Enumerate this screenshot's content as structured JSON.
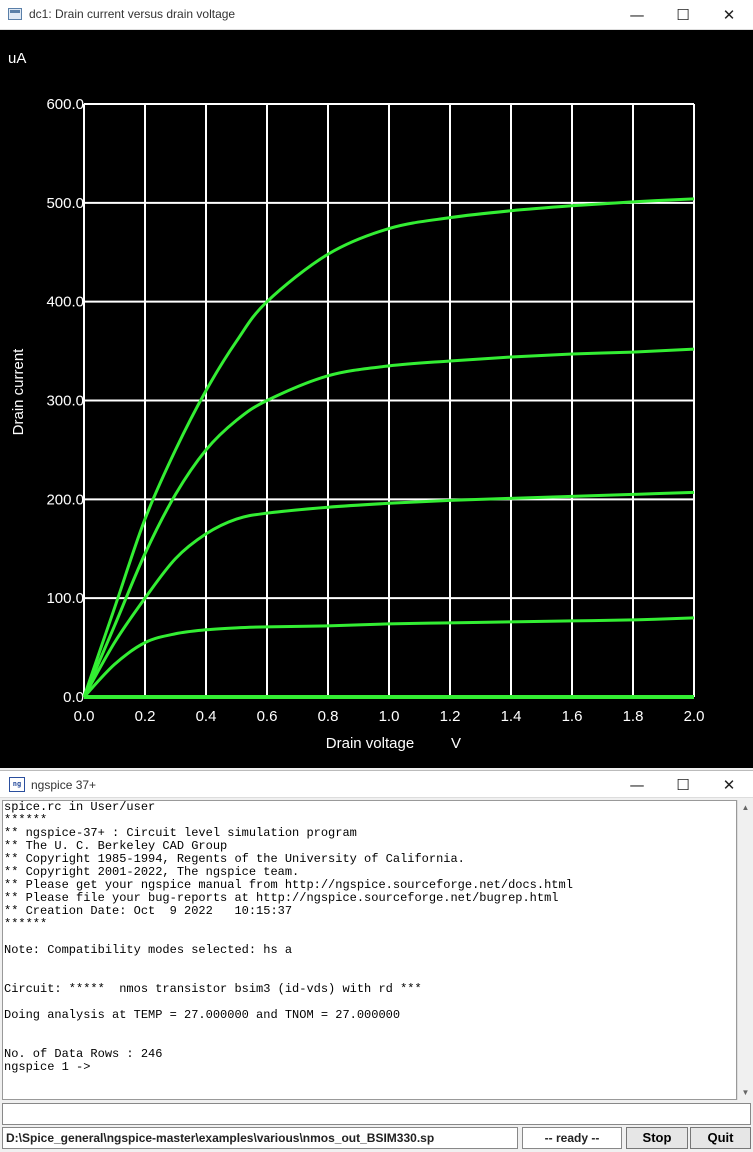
{
  "plot_window": {
    "title": "dc1: Drain current versus drain voltage",
    "controls": {
      "minimize": "—",
      "maximize": "☐",
      "close": "✕"
    }
  },
  "chart_data": {
    "type": "line",
    "xlabel": "Drain voltage",
    "xunit": "V",
    "ylabel": "Drain current",
    "yunit": "uA",
    "xlim": [
      0,
      2
    ],
    "ylim": [
      0,
      600
    ],
    "xticks": [
      "0.0",
      "0.2",
      "0.4",
      "0.6",
      "0.8",
      "1.0",
      "1.2",
      "1.4",
      "1.6",
      "1.8",
      "2.0"
    ],
    "yticks": [
      "0.0",
      "100.0",
      "200.0",
      "300.0",
      "400.0",
      "500.0",
      "600.0"
    ],
    "grid": true,
    "background": "#000000",
    "grid_color": "#ffffff",
    "line_color": "#33ee33",
    "series": [
      {
        "x": [
          0,
          0.1,
          0.2,
          0.3,
          0.4,
          0.5,
          0.6,
          0.8,
          1.0,
          1.2,
          1.4,
          1.6,
          1.8,
          2.0
        ],
        "values": [
          0,
          0,
          0,
          0,
          0,
          0,
          0,
          0,
          0,
          0,
          0,
          0,
          0,
          0
        ]
      },
      {
        "x": [
          0,
          0.1,
          0.2,
          0.3,
          0.4,
          0.5,
          0.6,
          0.8,
          1.0,
          1.2,
          1.4,
          1.6,
          1.8,
          2.0
        ],
        "values": [
          0,
          33,
          55,
          64,
          68,
          70,
          71,
          72,
          74,
          75,
          76,
          77,
          78,
          80
        ]
      },
      {
        "x": [
          0,
          0.1,
          0.2,
          0.3,
          0.4,
          0.5,
          0.6,
          0.8,
          1.0,
          1.2,
          1.4,
          1.6,
          1.8,
          2.0
        ],
        "values": [
          0,
          55,
          100,
          140,
          165,
          180,
          186,
          192,
          196,
          199,
          201,
          203,
          205,
          207
        ]
      },
      {
        "x": [
          0,
          0.1,
          0.2,
          0.3,
          0.4,
          0.5,
          0.6,
          0.8,
          1.0,
          1.2,
          1.4,
          1.6,
          1.8,
          2.0
        ],
        "values": [
          0,
          72,
          145,
          205,
          250,
          280,
          300,
          325,
          335,
          340,
          344,
          347,
          349,
          352
        ]
      },
      {
        "x": [
          0,
          0.1,
          0.2,
          0.3,
          0.4,
          0.5,
          0.6,
          0.8,
          1.0,
          1.2,
          1.4,
          1.6,
          1.8,
          2.0
        ],
        "values": [
          0,
          90,
          180,
          250,
          310,
          360,
          400,
          448,
          474,
          485,
          492,
          497,
          501,
          504
        ]
      }
    ]
  },
  "console_window": {
    "title": "ngspice 37+",
    "icon_label": "ng",
    "controls": {
      "minimize": "—",
      "maximize": "☐",
      "close": "✕"
    },
    "lines": [
      "spice.rc in User/user",
      "******",
      "** ngspice-37+ : Circuit level simulation program",
      "** The U. C. Berkeley CAD Group",
      "** Copyright 1985-1994, Regents of the University of California.",
      "** Copyright 2001-2022, The ngspice team.",
      "** Please get your ngspice manual from http://ngspice.sourceforge.net/docs.html",
      "** Please file your bug-reports at http://ngspice.sourceforge.net/bugrep.html",
      "** Creation Date: Oct  9 2022   10:15:37",
      "******",
      "",
      "Note: Compatibility modes selected: hs a",
      "",
      "",
      "Circuit: *****  nmos transistor bsim3 (id-vds) with rd ***",
      "",
      "Doing analysis at TEMP = 27.000000 and TNOM = 27.000000",
      "",
      "",
      "No. of Data Rows : 246",
      "ngspice 1 ->"
    ],
    "input_value": "",
    "status_path": "D:\\Spice_general\\ngspice-master\\examples\\various\\nmos_out_BSIM330.sp",
    "status_ready": "-- ready --",
    "stop_label": "Stop",
    "quit_label": "Quit"
  }
}
